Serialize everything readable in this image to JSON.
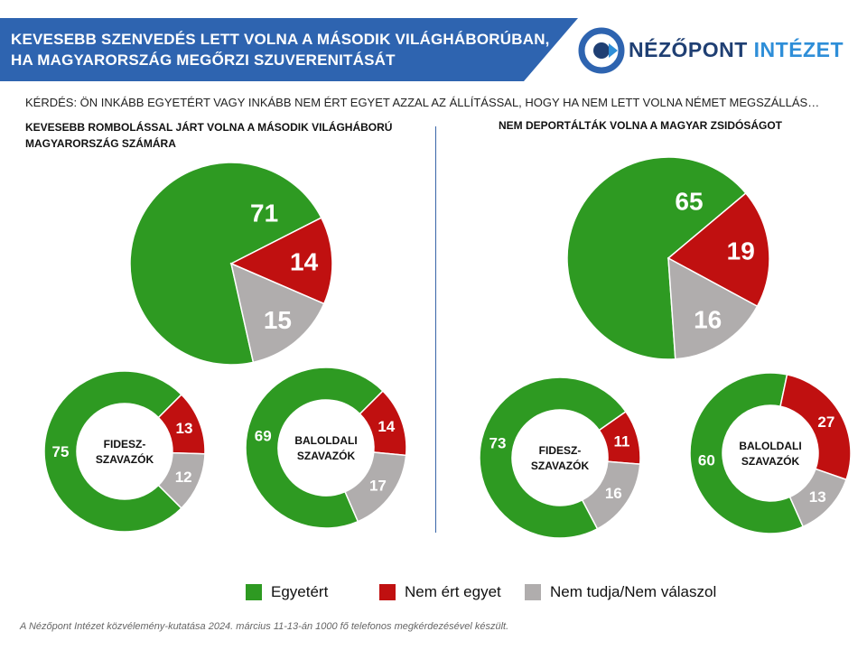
{
  "header": {
    "title_line1": "KEVESEBB SZENVEDÉS LETT VOLNA A MÁSODIK VILÁGHÁBORÚBAN,",
    "title_line2": "HA MAGYARORSZÁG MEGŐRZI SZUVERENITÁSÁT",
    "logo_word1": "NÉZŐPONT",
    "logo_word2": "INTÉZET"
  },
  "question": "KÉRDÉS: ÖN INKÁBB EGYETÉRT VAGY INKÁBB NEM ÉRT EGYET AZZAL AZ ÁLLÍTÁSSAL, HOGY HA NEM LETT VOLNA NÉMET MEGSZÁLLÁS…",
  "left_heading_line1": "KEVESEBB ROMBOLÁSSAL JÁRT VOLNA A MÁSODIK VILÁGHÁBORÚ",
  "left_heading_line2": "MAGYARORSZÁG SZÁMÁRA",
  "right_heading": "NEM DEPORTÁLTÁK VOLNA A MAGYAR ZSIDÓSÁGOT",
  "colors": {
    "agree": "#2e9a22",
    "disagree": "#c01010",
    "dontknow": "#b0adad",
    "title_band": "#2e64b0"
  },
  "legend": [
    {
      "label": "Egyetért",
      "color": "#2e9a22"
    },
    {
      "label": "Nem ért egyet",
      "color": "#c01010"
    },
    {
      "label": "Nem tudja/Nem válaszol",
      "color": "#b0adad"
    }
  ],
  "footnote": "A Nézőpont Intézet közvélemény-kutatása  2024. március 11-13-án 1000 fő telefonos megkérdezésével készült.",
  "chart_data": [
    {
      "type": "pie",
      "group": "left",
      "labels": [
        "Egyetért",
        "Nem ért egyet",
        "Nem tudja/Nem válaszol"
      ],
      "values": [
        71,
        14,
        15
      ]
    },
    {
      "type": "pie",
      "group": "left",
      "center_label": [
        "FIDESZ-",
        "SZAVAZÓK"
      ],
      "labels": [
        "Egyetért",
        "Nem ért egyet",
        "Nem tudja/Nem válaszol"
      ],
      "values": [
        75,
        13,
        12
      ]
    },
    {
      "type": "pie",
      "group": "left",
      "center_label": [
        "BALOLDALI",
        "SZAVAZÓK"
      ],
      "labels": [
        "Egyetért",
        "Nem ért egyet",
        "Nem tudja/Nem válaszol"
      ],
      "values": [
        69,
        14,
        17
      ]
    },
    {
      "type": "pie",
      "group": "right",
      "labels": [
        "Egyetért",
        "Nem ért egyet",
        "Nem tudja/Nem válaszol"
      ],
      "values": [
        65,
        19,
        16
      ]
    },
    {
      "type": "pie",
      "group": "right",
      "center_label": [
        "FIDESZ-",
        "SZAVAZÓK"
      ],
      "labels": [
        "Egyetért",
        "Nem ért egyet",
        "Nem tudja/Nem válaszol"
      ],
      "values": [
        73,
        11,
        16
      ]
    },
    {
      "type": "pie",
      "group": "right",
      "center_label": [
        "BALOLDALI",
        "SZAVAZÓK"
      ],
      "labels": [
        "Egyetért",
        "Nem ért egyet",
        "Nem tudja/Nem válaszol"
      ],
      "values": [
        60,
        27,
        13
      ]
    }
  ]
}
